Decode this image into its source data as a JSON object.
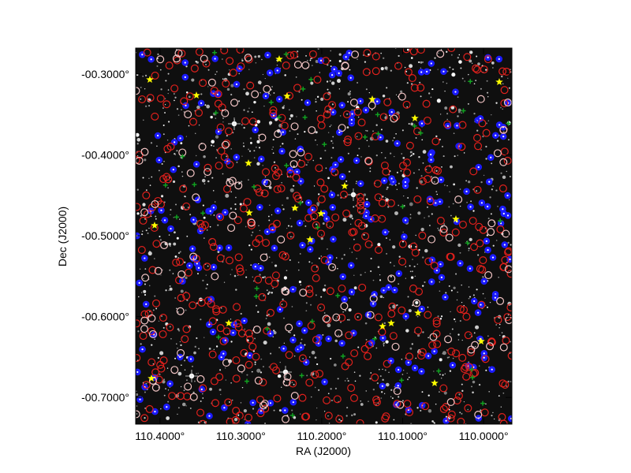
{
  "figure": {
    "x_axis_title": "RA (J2000)",
    "y_axis_title": "Dec (J2000)",
    "x_ticks": [
      {
        "value": 110.4,
        "label": "110.4000°"
      },
      {
        "value": 110.3,
        "label": "110.3000°"
      },
      {
        "value": 110.2,
        "label": "110.2000°"
      },
      {
        "value": 110.1,
        "label": "110.1000°"
      },
      {
        "value": 110.0,
        "label": "110.0000°"
      }
    ],
    "y_ticks": [
      {
        "value": -0.3,
        "label": "-00.3000°"
      },
      {
        "value": -0.4,
        "label": "-00.4000°"
      },
      {
        "value": -0.5,
        "label": "-00.5000°"
      },
      {
        "value": -0.6,
        "label": "-00.6000°"
      },
      {
        "value": -0.7,
        "label": "-00.7000°"
      }
    ],
    "x_range": [
      110.43,
      109.965
    ],
    "y_range": [
      -0.268,
      -0.733
    ],
    "background_color": "#0f0f0f",
    "marker_colors": {
      "red_circle": "#e0201c",
      "pink_circle": "#f2c4c4",
      "blue_dot": "#1a1aff",
      "yellow_star": "#ffff00",
      "green_plus": "#10a020"
    }
  }
}
